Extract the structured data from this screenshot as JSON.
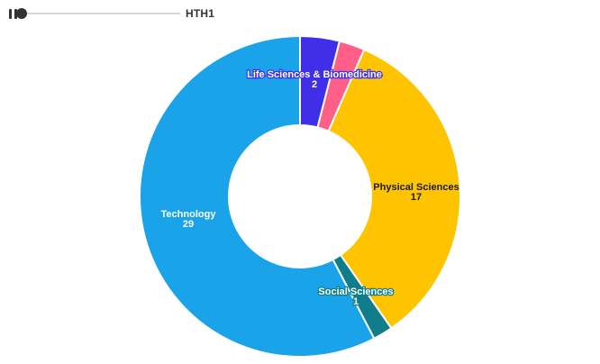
{
  "player": {
    "state_label": "HTH1",
    "progress": 0.0
  },
  "chart_data": {
    "type": "pie",
    "donut": true,
    "slices": [
      {
        "name": "Life Sciences & Biomedicine",
        "value": 2,
        "color": "#3F2FE8",
        "label_color": "#ffffff",
        "label_outline": "#3F2FE8"
      },
      {
        "name": "",
        "value": 1.3,
        "color": "#FF5F86",
        "label_color": "",
        "label_outline": ""
      },
      {
        "name": "Physical Sciences",
        "value": 17,
        "color": "#FFC400",
        "label_color": "#1a1a1a",
        "label_outline": ""
      },
      {
        "name": "Social Sciences",
        "value": 1,
        "color": "#0F7E8A",
        "label_color": "#ffffff",
        "label_outline": "#0F7E8A"
      },
      {
        "name": "Technology",
        "value": 29,
        "color": "#1AA3E8",
        "label_color": "#ffffff",
        "label_outline": ""
      }
    ],
    "legend": "none"
  }
}
